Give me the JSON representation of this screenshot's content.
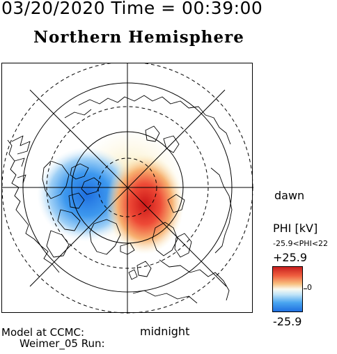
{
  "header": {
    "timestamp": "03/20/2020 Time = 00:39:00",
    "hemisphere_title": "Northern Hemisphere"
  },
  "labels": {
    "dawn": "dawn",
    "midnight": "midnight",
    "model_line1": "Model at CCMC:",
    "model_line2": "Weimer_05 Run:"
  },
  "colorbar": {
    "title": "PHI [kV]",
    "range_text": "-25.9<PHI<22",
    "max_label": "+25.9",
    "zero_label": "0",
    "min_label": "-25.9",
    "max_color": "#c81e1e",
    "zero_color": "#fafaf0",
    "min_color": "#1f6fe0"
  },
  "map": {
    "projection": "north polar stereographic",
    "orientation": "noon at top, midnight at bottom, dawn at right",
    "grid_color": "#000000",
    "coastline_color": "#000000"
  }
}
